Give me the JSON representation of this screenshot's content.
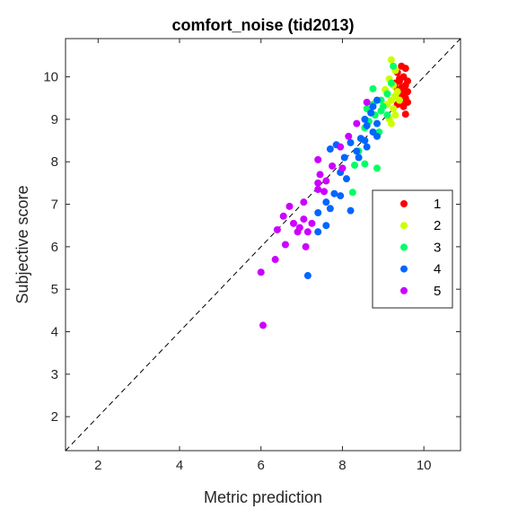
{
  "chart_data": {
    "type": "scatter",
    "title": "comfort_noise (tid2013)",
    "xlabel": "Metric prediction",
    "ylabel": "Subjective score",
    "xlim": [
      1.2,
      10.9
    ],
    "ylim": [
      1.2,
      10.9
    ],
    "xticks": [
      2,
      4,
      6,
      8,
      10
    ],
    "yticks": [
      2,
      3,
      4,
      5,
      6,
      7,
      8,
      9,
      10
    ],
    "grid": false,
    "diagonal_reference_line": true,
    "legend_position": "right",
    "series": [
      {
        "name": "1",
        "color": "#ff0000",
        "points": [
          [
            9.45,
            10.25
          ],
          [
            9.55,
            10.2
          ],
          [
            9.35,
            10.1
          ],
          [
            9.5,
            10.0
          ],
          [
            9.4,
            9.95
          ],
          [
            9.6,
            9.9
          ],
          [
            9.3,
            9.85
          ],
          [
            9.55,
            9.8
          ],
          [
            9.45,
            9.75
          ],
          [
            9.35,
            9.7
          ],
          [
            9.6,
            9.65
          ],
          [
            9.5,
            9.6
          ],
          [
            9.4,
            9.55
          ],
          [
            9.55,
            9.5
          ],
          [
            9.45,
            9.45
          ],
          [
            9.6,
            9.4
          ],
          [
            9.35,
            9.35
          ],
          [
            9.5,
            9.3
          ],
          [
            9.55,
            9.12
          ],
          [
            9.4,
            9.9
          ],
          [
            9.5,
            9.7
          ]
        ]
      },
      {
        "name": "2",
        "color": "#ccff00",
        "points": [
          [
            9.2,
            10.4
          ],
          [
            9.3,
            10.15
          ],
          [
            9.15,
            9.95
          ],
          [
            9.25,
            9.8
          ],
          [
            9.05,
            9.7
          ],
          [
            9.3,
            9.55
          ],
          [
            9.2,
            9.45
          ],
          [
            9.1,
            9.35
          ],
          [
            9.25,
            9.25
          ],
          [
            8.95,
            9.2
          ],
          [
            9.3,
            9.1
          ],
          [
            9.15,
            9.0
          ],
          [
            9.2,
            8.9
          ],
          [
            9.4,
            9.45
          ],
          [
            9.35,
            9.65
          ]
        ]
      },
      {
        "name": "3",
        "color": "#00ff66",
        "points": [
          [
            9.25,
            10.25
          ],
          [
            9.2,
            9.85
          ],
          [
            8.75,
            9.72
          ],
          [
            9.1,
            9.6
          ],
          [
            8.95,
            9.45
          ],
          [
            8.75,
            9.35
          ],
          [
            8.6,
            9.25
          ],
          [
            8.95,
            9.2
          ],
          [
            9.1,
            9.1
          ],
          [
            8.65,
            8.95
          ],
          [
            8.55,
            8.8
          ],
          [
            8.9,
            8.7
          ],
          [
            8.4,
            8.25
          ],
          [
            8.3,
            7.92
          ],
          [
            8.55,
            7.95
          ],
          [
            8.85,
            7.85
          ],
          [
            8.25,
            7.28
          ],
          [
            9.0,
            9.3
          ],
          [
            8.8,
            9.1
          ]
        ]
      },
      {
        "name": "4",
        "color": "#0066ff",
        "points": [
          [
            8.85,
            9.45
          ],
          [
            8.75,
            9.3
          ],
          [
            8.7,
            9.15
          ],
          [
            8.55,
            9.0
          ],
          [
            8.85,
            8.9
          ],
          [
            8.6,
            8.85
          ],
          [
            8.75,
            8.7
          ],
          [
            8.45,
            8.55
          ],
          [
            8.85,
            8.6
          ],
          [
            8.2,
            8.45
          ],
          [
            8.6,
            8.35
          ],
          [
            8.55,
            8.5
          ],
          [
            8.35,
            8.25
          ],
          [
            7.85,
            8.4
          ],
          [
            7.7,
            8.3
          ],
          [
            8.05,
            8.1
          ],
          [
            7.95,
            7.75
          ],
          [
            8.1,
            7.6
          ],
          [
            7.8,
            7.25
          ],
          [
            7.95,
            7.2
          ],
          [
            7.6,
            7.05
          ],
          [
            8.2,
            6.85
          ],
          [
            7.7,
            6.9
          ],
          [
            7.4,
            6.8
          ],
          [
            7.6,
            6.5
          ],
          [
            7.4,
            6.35
          ],
          [
            7.15,
            5.32
          ],
          [
            8.4,
            8.1
          ]
        ]
      },
      {
        "name": "5",
        "color": "#cc00ff",
        "points": [
          [
            8.6,
            9.4
          ],
          [
            8.35,
            8.9
          ],
          [
            8.15,
            8.6
          ],
          [
            7.95,
            8.35
          ],
          [
            7.4,
            8.05
          ],
          [
            7.75,
            7.9
          ],
          [
            7.45,
            7.7
          ],
          [
            7.6,
            7.55
          ],
          [
            8.0,
            7.85
          ],
          [
            7.4,
            7.5
          ],
          [
            7.55,
            7.3
          ],
          [
            7.4,
            7.35
          ],
          [
            7.05,
            7.05
          ],
          [
            6.7,
            6.95
          ],
          [
            6.55,
            6.72
          ],
          [
            7.05,
            6.65
          ],
          [
            7.25,
            6.55
          ],
          [
            6.8,
            6.55
          ],
          [
            6.95,
            6.45
          ],
          [
            6.6,
            6.05
          ],
          [
            6.9,
            6.35
          ],
          [
            7.1,
            6.0
          ],
          [
            6.4,
            6.4
          ],
          [
            6.0,
            5.4
          ],
          [
            6.35,
            5.7
          ],
          [
            6.05,
            4.15
          ],
          [
            7.15,
            6.35
          ]
        ]
      }
    ]
  }
}
